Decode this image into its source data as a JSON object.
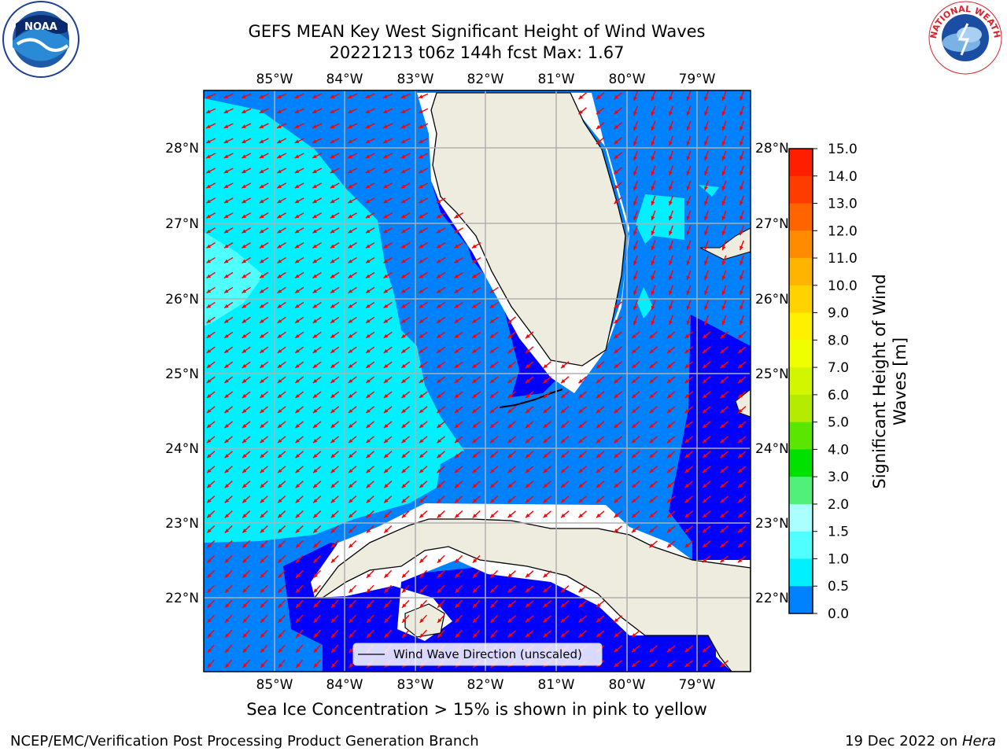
{
  "title": {
    "line1": "GEFS MEAN Key West Significant Height of Wind Waves",
    "line2": "20221213 t06z 144h fcst   Max: 1.67"
  },
  "map": {
    "lon_labels": [
      "85°W",
      "84°W",
      "83°W",
      "82°W",
      "81°W",
      "80°W",
      "79°W"
    ],
    "lat_labels": [
      "28°N",
      "27°N",
      "26°N",
      "25°N",
      "24°N",
      "23°N",
      "22°N"
    ],
    "legend_label": "Wind Wave Direction (unscaled)",
    "arrow_color": "#ff0000",
    "land_color": "#eeecde",
    "grid_color": "#b0b0b0"
  },
  "colorbar": {
    "label": "Significant Height of Wind Waves [m]",
    "label_line1": "Significant Height of Wind",
    "label_line2": "Waves [m]",
    "ticks": [
      "15.0",
      "14.0",
      "13.0",
      "12.0",
      "11.0",
      "10.0",
      "9.0",
      "8.0",
      "7.0",
      "6.0",
      "5.0",
      "4.0",
      "3.0",
      "2.0",
      "1.5",
      "1.0",
      "0.5",
      "0.0"
    ],
    "colors": [
      "#ff1e00",
      "#ff3c00",
      "#ff6400",
      "#ff8c00",
      "#ffb400",
      "#ffd200",
      "#fff000",
      "#f0ff00",
      "#d2f500",
      "#b4eb00",
      "#5ae600",
      "#00e100",
      "#50f07a",
      "#aaffff",
      "#50ffff",
      "#00f0ff",
      "#0082ff",
      "#0000ff"
    ]
  },
  "note": "Sea Ice Concentration > 15% is shown in pink to yellow",
  "footer": {
    "left": "NCEP/EMC/Verification Post Processing Product Generation Branch",
    "right_prefix": "19 Dec 2022 on ",
    "right_host": "Hera"
  },
  "logos": {
    "noaa_text": "NOAA",
    "nws_text": "NATIONAL WEATHER SERVICE"
  }
}
